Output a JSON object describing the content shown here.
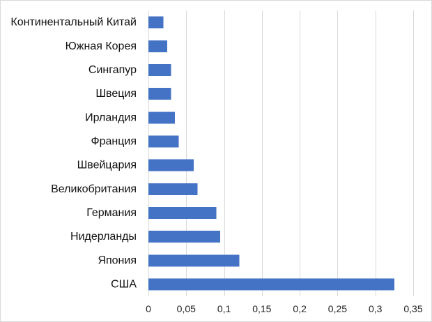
{
  "chart_data": {
    "type": "bar",
    "orientation": "horizontal",
    "categories": [
      "Континентальный Китай",
      "Южная Корея",
      "Сингапур",
      "Швеция",
      "Ирландия",
      "Франция",
      "Швейцария",
      "Великобритания",
      "Германия",
      "Нидерланды",
      "Япония",
      "США"
    ],
    "values": [
      0.02,
      0.025,
      0.03,
      0.03,
      0.035,
      0.04,
      0.06,
      0.065,
      0.09,
      0.095,
      0.12,
      0.325
    ],
    "title": "",
    "xlabel": "",
    "ylabel": "",
    "xlim": [
      0,
      0.35
    ],
    "x_ticks": [
      0,
      0.05,
      0.1,
      0.15,
      0.2,
      0.25,
      0.3,
      0.35
    ],
    "x_tick_labels": [
      "0",
      "0,05",
      "0,1",
      "0,15",
      "0,2",
      "0,25",
      "0,3",
      "0,35"
    ],
    "grid": "vertical",
    "legend": "none",
    "bar_color": "#4472c4",
    "grid_color": "#d9d9d9"
  }
}
